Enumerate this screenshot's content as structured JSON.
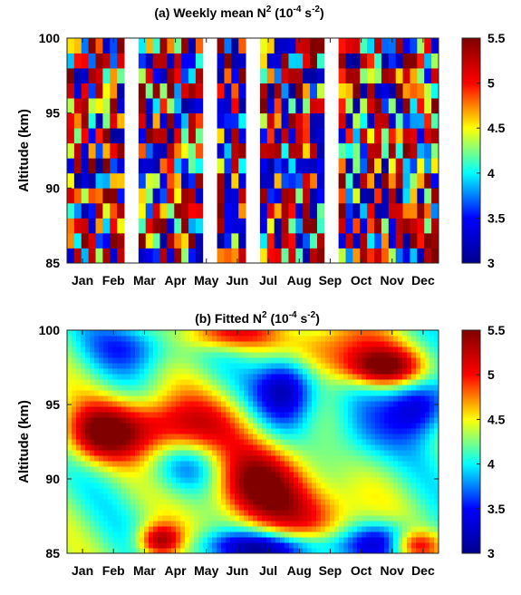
{
  "colormap": {
    "name": "jet",
    "stops": [
      "#00008f",
      "#0000ff",
      "#00ffff",
      "#ffff00",
      "#ff0000",
      "#800000"
    ]
  },
  "chart_data": [
    {
      "id": "a",
      "type": "heatmap",
      "title": "(a) Weekly mean N",
      "title_sup1": "2",
      "title_mid": " (10",
      "title_sup2": "-4",
      "title_mid2": " s",
      "title_sup3": "-2",
      "title_end": ")",
      "xlabel": "",
      "ylabel": "Altitude (km)",
      "month_ticks": [
        "Jan",
        "Feb",
        "Mar",
        "Apr",
        "May",
        "Jun",
        "Jul",
        "Aug",
        "Sep",
        "Oct",
        "Nov",
        "Dec"
      ],
      "y_ticks": [
        "85",
        "90",
        "95",
        "100"
      ],
      "ylim": [
        85,
        100
      ],
      "colorbar": {
        "range": [
          3,
          5.5
        ],
        "ticks": [
          "3",
          "3.5",
          "4",
          "4.5",
          "5",
          "5.5"
        ]
      },
      "weeks": 52,
      "altitude_levels": [
        85.5,
        86.5,
        87.5,
        88.5,
        89.5,
        90.5,
        91.5,
        92.5,
        93.5,
        94.5,
        95.5,
        96.5,
        97.5,
        98.5,
        99.5
      ],
      "missing_weeks": [
        8,
        9,
        19,
        20,
        25,
        26,
        36,
        37
      ],
      "note_values": "weekly mean N^2 values, units 1e-4 s^-2"
    },
    {
      "id": "b",
      "type": "heatmap",
      "title": "(b) Fitted N",
      "title_sup1": "2",
      "title_mid": " (10",
      "title_sup2": "-4",
      "title_mid2": " s",
      "title_sup3": "-2",
      "title_end": ")",
      "xlabel": "",
      "ylabel": "Altitude (km)",
      "month_ticks": [
        "Jan",
        "Feb",
        "Mar",
        "Apr",
        "May",
        "Jun",
        "Jul",
        "Aug",
        "Sep",
        "Oct",
        "Nov",
        "Dec"
      ],
      "y_ticks": [
        "85",
        "90",
        "95",
        "100"
      ],
      "ylim": [
        85,
        100
      ],
      "colorbar": {
        "range": [
          3,
          5.5
        ],
        "ticks": [
          "3",
          "3.5",
          "4",
          "4.5",
          "5",
          "5.5"
        ]
      },
      "features": [
        {
          "month": 6.3,
          "alt": 89.6,
          "value": 5.5,
          "spread_month": 1.2,
          "spread_alt": 2.0
        },
        {
          "month": 3.2,
          "alt": 93.5,
          "value": 5.3,
          "spread_month": 1.6,
          "spread_alt": 1.5
        },
        {
          "month": 1.0,
          "alt": 93.0,
          "value": 5.1,
          "spread_month": 0.8,
          "spread_alt": 1.3
        },
        {
          "month": 10.2,
          "alt": 97.5,
          "value": 5.4,
          "spread_month": 0.9,
          "spread_alt": 0.9
        },
        {
          "month": 8.4,
          "alt": 98.8,
          "value": 5.0,
          "spread_month": 1.3,
          "spread_alt": 1.4
        },
        {
          "month": 5.0,
          "alt": 99.8,
          "value": 5.1,
          "spread_month": 1.0,
          "spread_alt": 0.8
        },
        {
          "month": 3.0,
          "alt": 85.8,
          "value": 5.4,
          "spread_month": 0.5,
          "spread_alt": 0.8
        },
        {
          "month": 11.2,
          "alt": 85.6,
          "value": 5.2,
          "spread_month": 0.6,
          "spread_alt": 0.7
        },
        {
          "month": 8.3,
          "alt": 87.5,
          "value": 4.8,
          "spread_month": 1.0,
          "spread_alt": 1.5
        },
        {
          "month": 7.1,
          "alt": 96.3,
          "value": 3.0,
          "spread_month": 0.7,
          "spread_alt": 1.8
        },
        {
          "month": 6.5,
          "alt": 85.4,
          "value": 3.1,
          "spread_month": 1.6,
          "spread_alt": 0.8
        },
        {
          "month": 11.4,
          "alt": 95.0,
          "value": 3.2,
          "spread_month": 0.7,
          "spread_alt": 1.4
        },
        {
          "month": 10.4,
          "alt": 85.8,
          "value": 3.3,
          "spread_month": 0.8,
          "spread_alt": 0.9
        },
        {
          "month": 2.2,
          "alt": 99.0,
          "value": 3.6,
          "spread_month": 1.0,
          "spread_alt": 1.2
        },
        {
          "month": 4.0,
          "alt": 91.0,
          "value": 3.7,
          "spread_month": 1.0,
          "spread_alt": 1.3
        },
        {
          "month": 9.4,
          "alt": 93.0,
          "value": 3.8,
          "spread_month": 0.9,
          "spread_alt": 1.8
        }
      ],
      "base_value": 4.2
    }
  ]
}
